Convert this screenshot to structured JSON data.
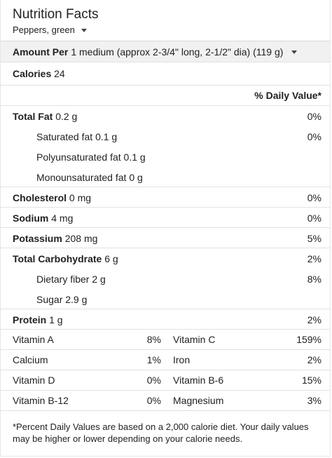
{
  "header": {
    "title": "Nutrition Facts",
    "food": "Peppers, green"
  },
  "serving": {
    "amount_label": "Amount Per",
    "amount_value": "1 medium (approx 2-3/4\" long, 2-1/2\" dia) (119 g)"
  },
  "calories": {
    "label": "Calories",
    "value": "24"
  },
  "daily_value_header": "% Daily Value*",
  "nutrients": [
    {
      "label": "Total Fat",
      "value": "0.2 g",
      "pct": "0%"
    },
    {
      "label": "Saturated fat",
      "value": "0.1 g",
      "pct": "0%"
    },
    {
      "label": "Polyunsaturated fat",
      "value": "0.1 g",
      "pct": ""
    },
    {
      "label": "Monounsaturated fat",
      "value": "0 g",
      "pct": ""
    },
    {
      "label": "Cholesterol",
      "value": "0 mg",
      "pct": "0%"
    },
    {
      "label": "Sodium",
      "value": "4 mg",
      "pct": "0%"
    },
    {
      "label": "Potassium",
      "value": "208 mg",
      "pct": "5%"
    },
    {
      "label": "Total Carbohydrate",
      "value": "6 g",
      "pct": "2%"
    },
    {
      "label": "Dietary fiber",
      "value": "2 g",
      "pct": "8%"
    },
    {
      "label": "Sugar",
      "value": "2.9 g",
      "pct": ""
    },
    {
      "label": "Protein",
      "value": "1 g",
      "pct": "2%"
    }
  ],
  "vitamins": [
    {
      "left_name": "Vitamin A",
      "left_pct": "8%",
      "right_name": "Vitamin C",
      "right_pct": "159%"
    },
    {
      "left_name": "Calcium",
      "left_pct": "1%",
      "right_name": "Iron",
      "right_pct": "2%"
    },
    {
      "left_name": "Vitamin D",
      "left_pct": "0%",
      "right_name": "Vitamin B-6",
      "right_pct": "15%"
    },
    {
      "left_name": "Vitamin B-12",
      "left_pct": "0%",
      "right_name": "Magnesium",
      "right_pct": "3%"
    }
  ],
  "footnote": "*Percent Daily Values are based on a 2,000 calorie diet. Your daily values may be higher or lower depending on your calorie needs.",
  "icons": {
    "food_dropdown": "caret-down-icon",
    "serving_dropdown": "caret-down-icon"
  },
  "colors": {
    "band": "#f1f1f1",
    "divider": "#e2e2e2",
    "text": "#212121"
  }
}
